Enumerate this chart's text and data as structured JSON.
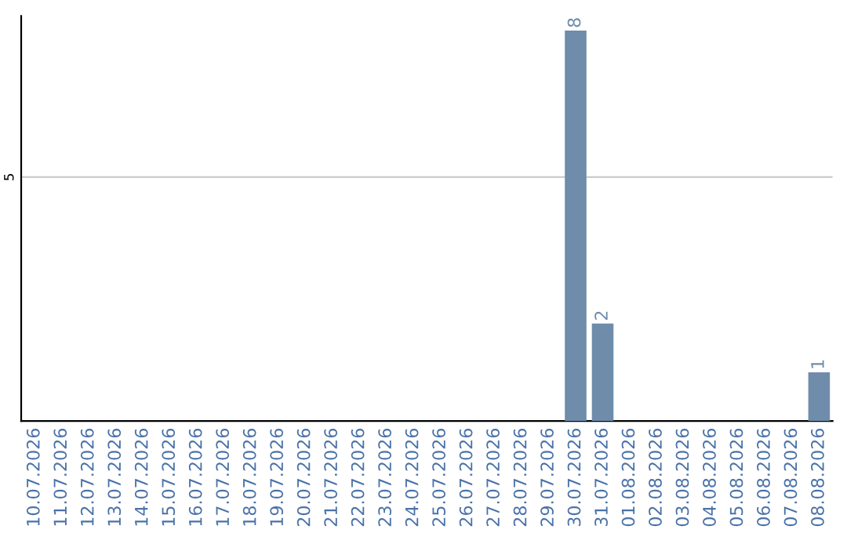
{
  "chart_data": {
    "type": "bar",
    "categories": [
      "10.07.2026",
      "11.07.2026",
      "12.07.2026",
      "13.07.2026",
      "14.07.2026",
      "15.07.2026",
      "16.07.2026",
      "17.07.2026",
      "18.07.2026",
      "19.07.2026",
      "20.07.2026",
      "21.07.2026",
      "22.07.2026",
      "23.07.2026",
      "24.07.2026",
      "25.07.2026",
      "26.07.2026",
      "27.07.2026",
      "28.07.2026",
      "29.07.2026",
      "30.07.2026",
      "31.07.2026",
      "01.08.2026",
      "02.08.2026",
      "03.08.2026",
      "04.08.2026",
      "05.08.2026",
      "06.08.2026",
      "07.08.2026",
      "08.08.2026"
    ],
    "values": [
      null,
      null,
      null,
      null,
      null,
      null,
      null,
      null,
      null,
      null,
      null,
      null,
      null,
      null,
      null,
      null,
      null,
      null,
      null,
      null,
      8,
      2,
      null,
      null,
      null,
      null,
      null,
      null,
      null,
      1
    ],
    "color": "#6f8caa",
    "ylim": [
      0,
      8.3
    ],
    "data_labels": true,
    "ref_lines": [
      {
        "axis": "y",
        "value": 5,
        "label": "5",
        "color": "#cccccc"
      }
    ]
  }
}
